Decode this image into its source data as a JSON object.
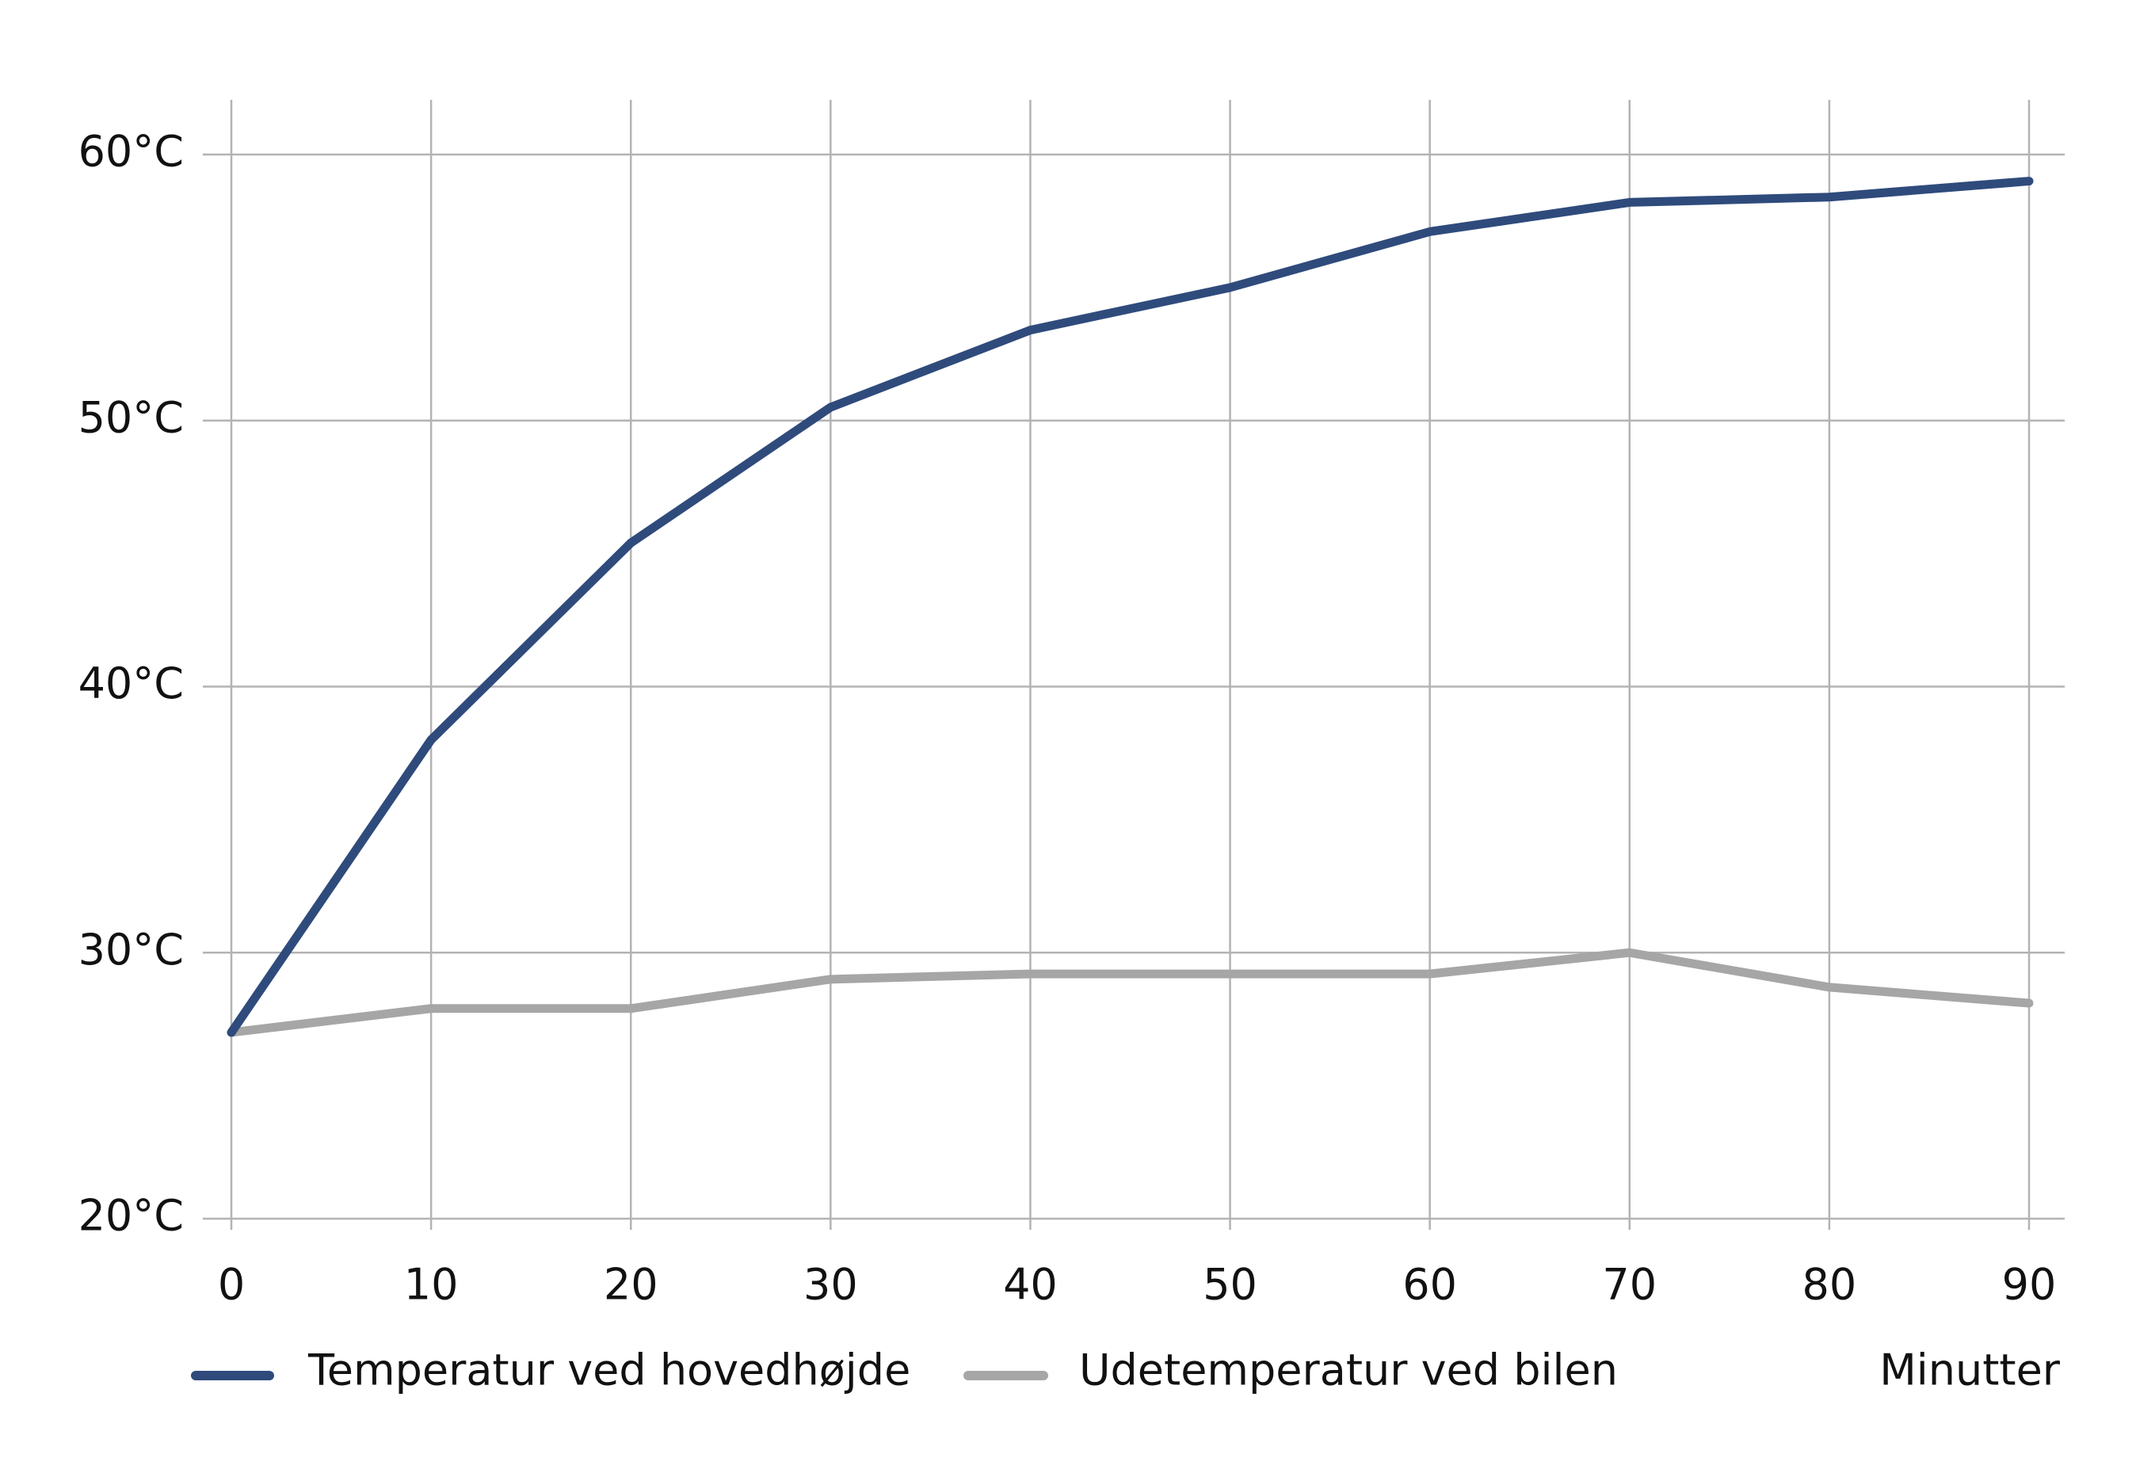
{
  "chart_data": {
    "type": "line",
    "x": [
      0,
      10,
      20,
      30,
      40,
      50,
      60,
      70,
      80,
      90
    ],
    "series": [
      {
        "name": "Temperatur ved hovedhøjde",
        "color": "#2f4b7c",
        "values": [
          27,
          38,
          45.4,
          50.5,
          53.4,
          55,
          57.1,
          58.2,
          58.4,
          59
        ]
      },
      {
        "name": "Udetemperatur ved bilen",
        "color": "#a6a6a6",
        "values": [
          27,
          27.9,
          27.9,
          29,
          29.2,
          29.2,
          29.2,
          30,
          28.7,
          28.1
        ]
      }
    ],
    "x_label": "Minutter",
    "xlim": [
      0,
      90
    ],
    "xticks": [
      0,
      10,
      20,
      30,
      40,
      50,
      60,
      70,
      80,
      90
    ],
    "ylim": [
      20,
      60
    ],
    "yticks": [
      {
        "value": 20,
        "label": "20°C"
      },
      {
        "value": 30,
        "label": "30°C"
      },
      {
        "value": 40,
        "label": "40°C"
      },
      {
        "value": 50,
        "label": "50°C"
      },
      {
        "value": 60,
        "label": "60°C"
      }
    ],
    "grid": true
  }
}
